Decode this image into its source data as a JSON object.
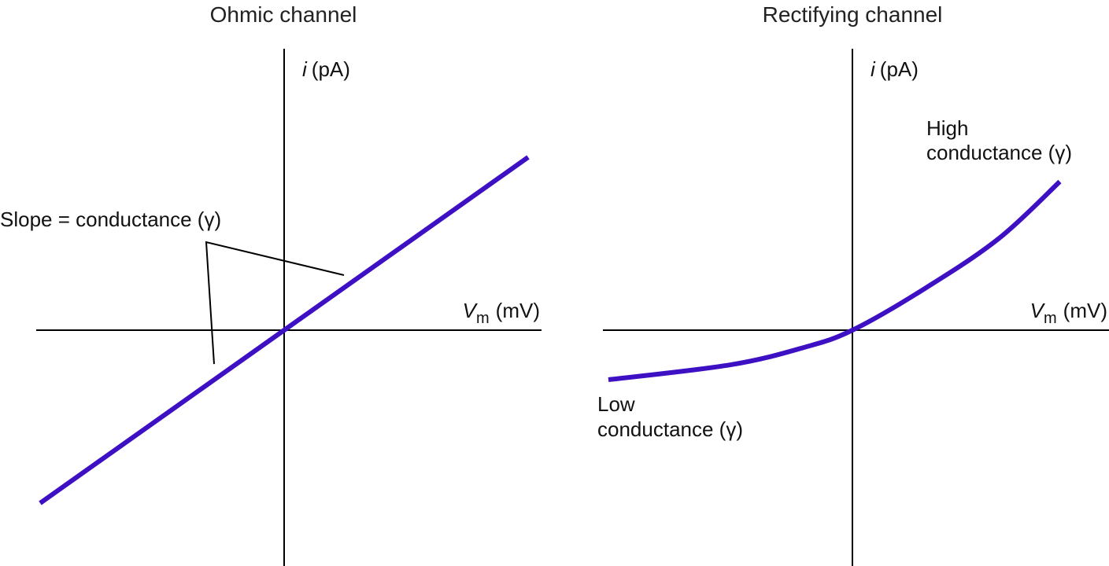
{
  "chart_data": [
    {
      "type": "line",
      "title": "Ohmic channel",
      "ylabel": {
        "var": "i",
        "unit": "(pA)"
      },
      "xlabel": {
        "var": "V",
        "sub": "m",
        "unit": "(mV)"
      },
      "annotations": {
        "slope": "Slope = conductance (γ)"
      },
      "series": [
        {
          "values": [
            {
              "x": -1.0,
              "y": -1.0
            },
            {
              "x": 1.0,
              "y": 1.0
            }
          ]
        }
      ],
      "colors": {
        "curve": "#3e10c4",
        "axis": "#000000"
      }
    },
    {
      "type": "line",
      "title": "Rectifying channel",
      "ylabel": {
        "var": "i",
        "unit": "(pA)"
      },
      "xlabel": {
        "var": "V",
        "sub": "m",
        "unit": "(mV)"
      },
      "annotations": {
        "high_line1": "High",
        "high_line2": "conductance (γ)",
        "low_line1": "Low",
        "low_line2": "conductance (γ)"
      },
      "series": [
        {
          "values": [
            {
              "x": -1.0,
              "y": -0.2
            },
            {
              "x": -0.5,
              "y": -0.14
            },
            {
              "x": -0.2,
              "y": -0.07
            },
            {
              "x": 0.0,
              "y": 0.0
            },
            {
              "x": 0.3,
              "y": 0.17
            },
            {
              "x": 0.6,
              "y": 0.37
            },
            {
              "x": 0.85,
              "y": 0.6
            }
          ]
        }
      ],
      "colors": {
        "curve": "#3e10c4",
        "axis": "#000000"
      }
    }
  ]
}
